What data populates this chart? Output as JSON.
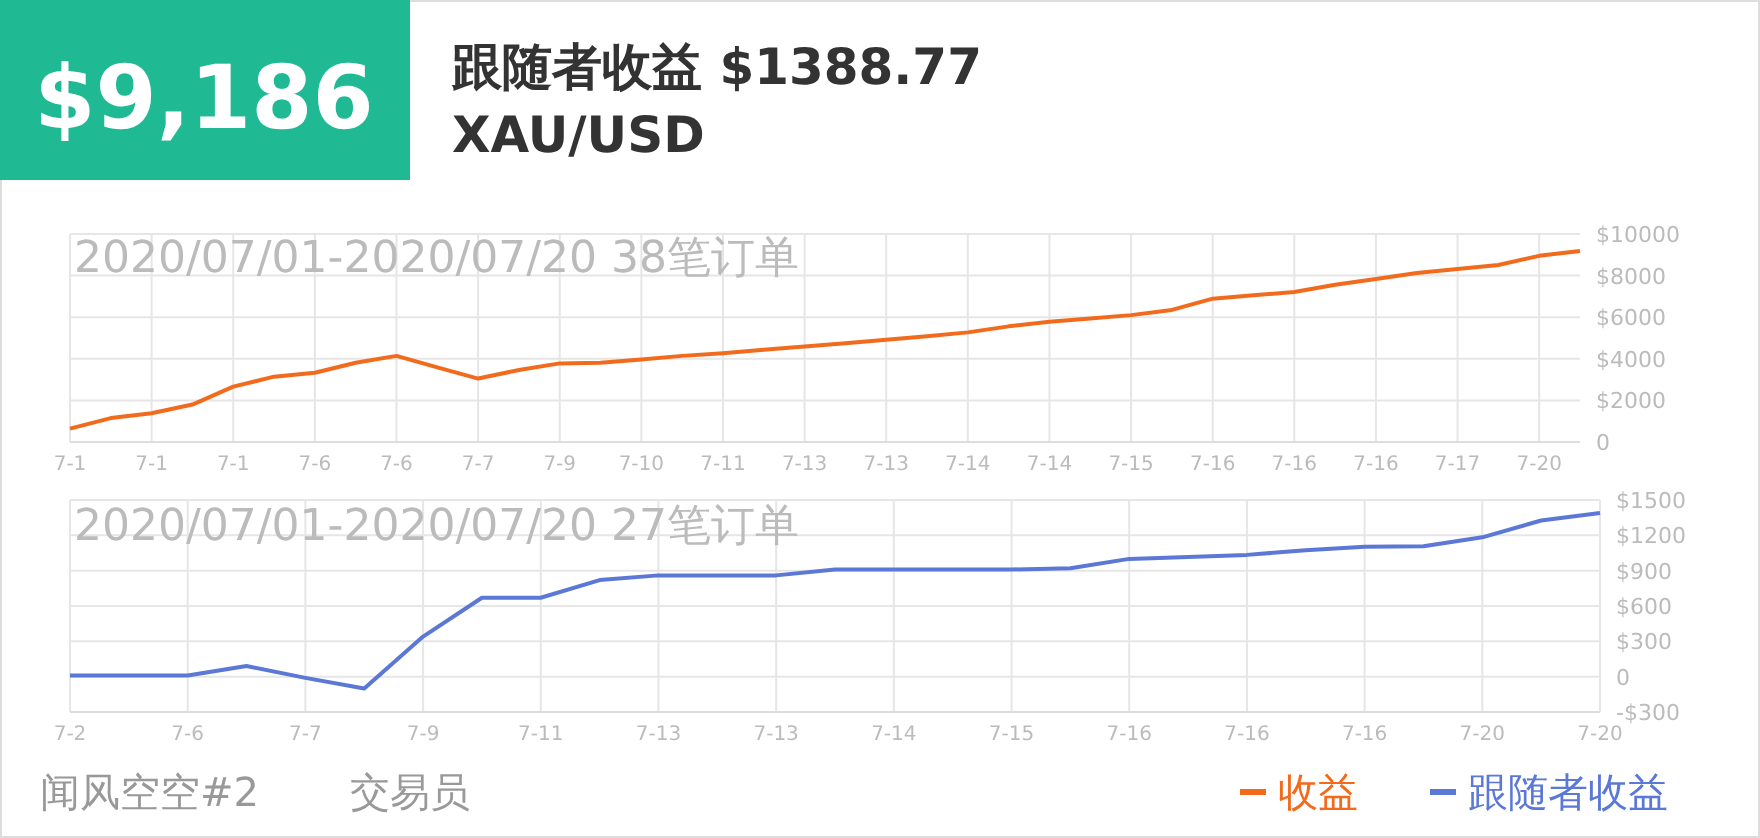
{
  "chart_data": [
    {
      "type": "other",
      "title": "$9,186",
      "subtitle": "跟随者收益 $1388.77",
      "annotations": [
        "XAU/USD"
      ],
      "color": "#1fba94"
    },
    {
      "type": "line",
      "title": "2020/07/01-2020/07/20 38笔订单",
      "categories": [
        "7-1",
        null,
        "7-1",
        null,
        "7-1",
        null,
        "7-6",
        null,
        "7-6",
        null,
        "7-7",
        null,
        "7-9",
        null,
        "7-10",
        null,
        "7-11",
        null,
        "7-13",
        null,
        "7-13",
        null,
        "7-14",
        null,
        "7-14",
        null,
        "7-15",
        null,
        "7-16",
        null,
        "7-16",
        null,
        "7-16",
        null,
        "7-17",
        null,
        "7-20",
        null
      ],
      "series": [
        {
          "name": "收益",
          "color": "#f26b1d",
          "values": [
            640,
            1150,
            1380,
            1800,
            2660,
            3140,
            3330,
            3810,
            4140,
            3590,
            3050,
            3460,
            3780,
            3810,
            3970,
            4140,
            4270,
            4430,
            4590,
            4750,
            4920,
            5080,
            5270,
            5560,
            5780,
            5940,
            6100,
            6350,
            6890,
            7050,
            7210,
            7560,
            7840,
            8130,
            8320,
            8510,
            8950,
            9186
          ]
        }
      ],
      "ylim": [
        0,
        10000
      ],
      "yticks": [
        {
          "value": 0,
          "label": "0"
        },
        {
          "value": 2000,
          "label": "$2000"
        },
        {
          "value": 4000,
          "label": "$4000"
        },
        {
          "value": 6000,
          "label": "$6000"
        },
        {
          "value": 8000,
          "label": "$8000"
        },
        {
          "value": 10000,
          "label": "$10000"
        }
      ],
      "grid": true,
      "legend": "bottom right"
    },
    {
      "type": "line",
      "title": "2020/07/01-2020/07/20 27笔订单",
      "categories": [
        "7-2",
        null,
        "7-6",
        null,
        "7-7",
        null,
        "7-9",
        null,
        "7-11",
        null,
        "7-13",
        null,
        "7-13",
        null,
        "7-14",
        null,
        "7-15",
        null,
        "7-16",
        null,
        "7-16",
        null,
        "7-16",
        null,
        "7-20",
        null,
        "7-20"
      ],
      "series": [
        {
          "name": "跟随者收益",
          "color": "#5b78d6",
          "values": [
            10,
            10,
            10,
            90,
            -10,
            -100,
            340,
            670,
            670,
            820,
            860,
            860,
            860,
            910,
            910,
            910,
            910,
            920,
            1000,
            1017,
            1034,
            1074,
            1103,
            1108,
            1183,
            1326,
            1389
          ]
        }
      ],
      "ylim": [
        -300,
        1500
      ],
      "yticks": [
        {
          "value": -300,
          "label": "-$300"
        },
        {
          "value": 0,
          "label": "0"
        },
        {
          "value": 300,
          "label": "$300"
        },
        {
          "value": 600,
          "label": "$600"
        },
        {
          "value": 900,
          "label": "$900"
        },
        {
          "value": 1200,
          "label": "$1200"
        },
        {
          "value": 1500,
          "label": "$1500"
        }
      ],
      "grid": true,
      "legend": "bottom right",
      "annotations": [
        "闻风空空#2",
        "交易员"
      ]
    }
  ]
}
